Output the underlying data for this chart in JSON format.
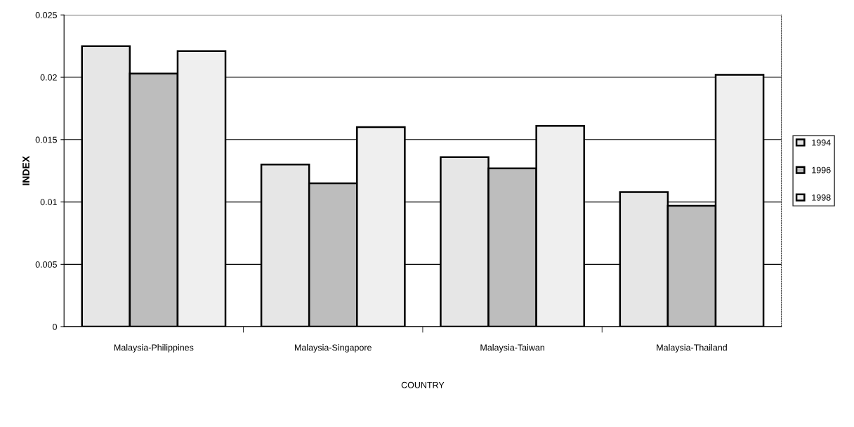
{
  "chart_data": {
    "type": "bar",
    "xlabel": "COUNTRY",
    "ylabel": "INDEX",
    "categories": [
      "Malaysia-Philippines",
      "Malaysia-Singapore",
      "Malaysia-Taiwan",
      "Malaysia-Thailand"
    ],
    "series": [
      {
        "name": "1994",
        "color": "#e6e6e6",
        "values": [
          0.0225,
          0.013,
          0.0136,
          0.0108
        ]
      },
      {
        "name": "1996",
        "color": "#bdbdbd",
        "values": [
          0.0203,
          0.0115,
          0.0127,
          0.0097
        ]
      },
      {
        "name": "1998",
        "color": "#efefef",
        "values": [
          0.0221,
          0.016,
          0.0161,
          0.0202
        ]
      }
    ],
    "ylim": [
      0,
      0.025
    ],
    "yticks": [
      {
        "value": 0,
        "label": "0"
      },
      {
        "value": 0.005,
        "label": "0.005"
      },
      {
        "value": 0.01,
        "label": "0.01"
      },
      {
        "value": 0.015,
        "label": "0.015"
      },
      {
        "value": 0.02,
        "label": "0.02"
      },
      {
        "value": 0.025,
        "label": "0.025"
      }
    ],
    "grid": "y",
    "legend": "right"
  }
}
